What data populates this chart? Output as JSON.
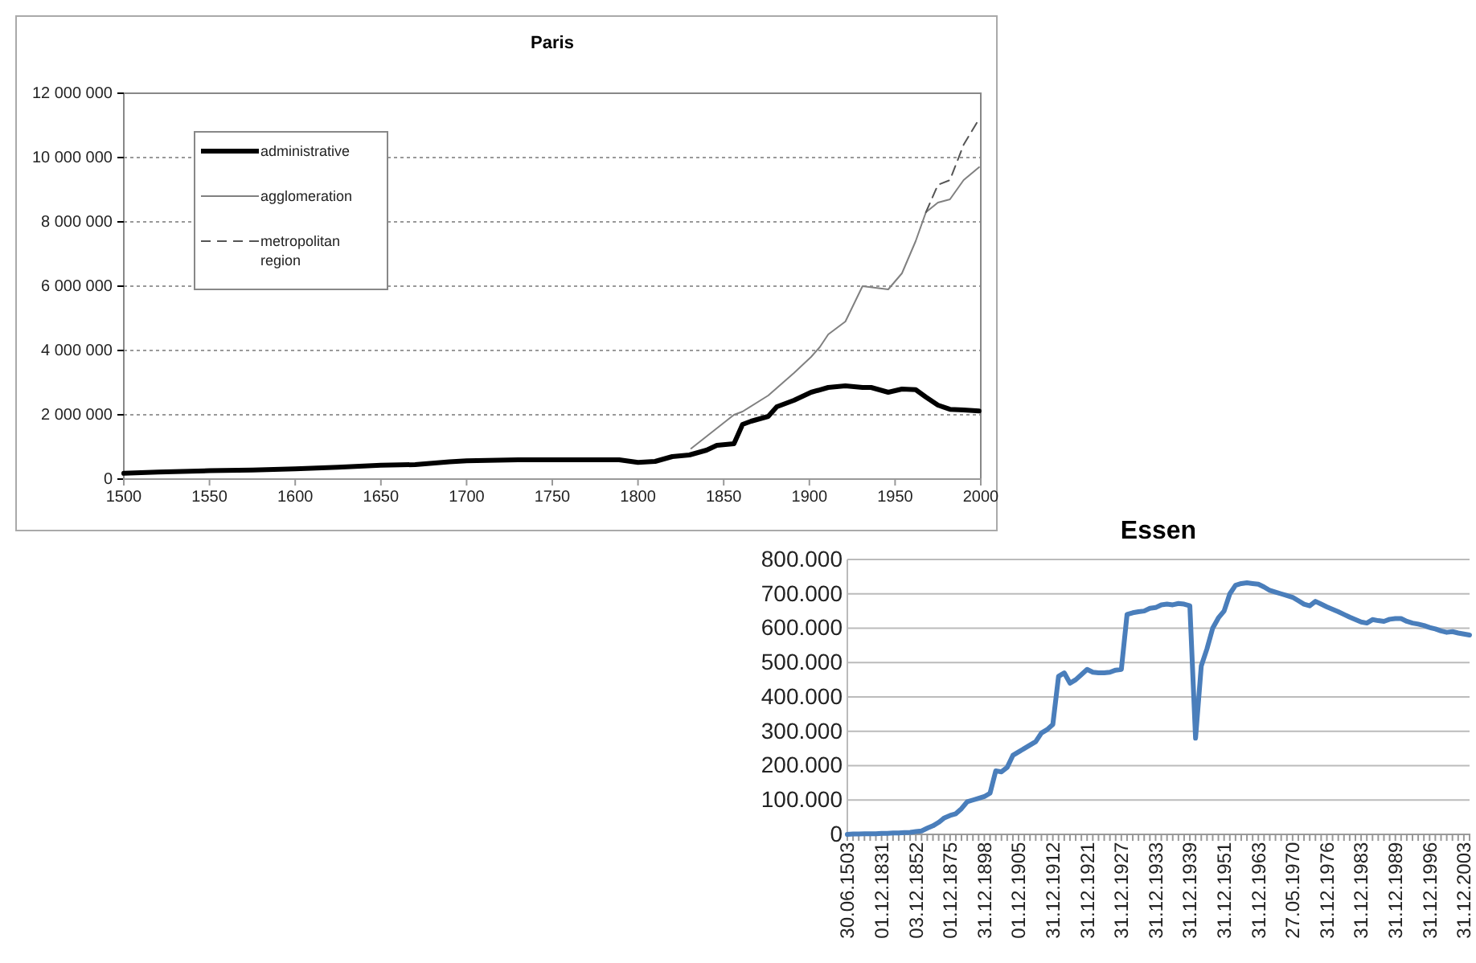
{
  "chart_data": [
    {
      "type": "line",
      "title": "Paris",
      "xlim": [
        1500,
        2000
      ],
      "xticks": [
        1500,
        1550,
        1600,
        1650,
        1700,
        1750,
        1800,
        1850,
        1900,
        1950,
        2000
      ],
      "ylim": [
        0,
        12000000
      ],
      "yticks": [
        0,
        {
          "value": 2000000,
          "label": "2 000 000"
        },
        {
          "value": 4000000,
          "label": "4 000 000"
        },
        {
          "value": 6000000,
          "label": "6 000 000"
        },
        {
          "value": 8000000,
          "label": "8 000 000"
        },
        {
          "value": 10000000,
          "label": "10 000 000"
        },
        {
          "value": 12000000,
          "label": "12 000 000"
        }
      ],
      "grid": "y",
      "legend": "top left",
      "series": [
        {
          "name": "administrative",
          "color": "#000000",
          "line_style": "solid",
          "x": [
            1500,
            1520,
            1550,
            1575,
            1600,
            1625,
            1650,
            1670,
            1690,
            1700,
            1730,
            1750,
            1789,
            1800,
            1810,
            1820,
            1830,
            1840,
            1846,
            1856,
            1861,
            1866,
            1876,
            1881,
            1891,
            1901,
            1911,
            1921,
            1931,
            1936,
            1946,
            1954,
            1962,
            1968,
            1975,
            1982,
            1990,
            1999
          ],
          "values": [
            180000,
            220000,
            260000,
            280000,
            320000,
            370000,
            430000,
            450000,
            540000,
            570000,
            600000,
            600000,
            600000,
            520000,
            550000,
            700000,
            750000,
            900000,
            1050000,
            1100000,
            1700000,
            1800000,
            1950000,
            2250000,
            2450000,
            2700000,
            2850000,
            2900000,
            2850000,
            2850000,
            2700000,
            2800000,
            2780000,
            2550000,
            2300000,
            2170000,
            2150000,
            2120000
          ]
        },
        {
          "name": "agglomeration",
          "color": "#808080",
          "line_style": "solid",
          "x": [
            1831,
            1856,
            1861,
            1876,
            1891,
            1901,
            1906,
            1911,
            1921,
            1931,
            1946,
            1954,
            1962,
            1968,
            1975,
            1982,
            1990,
            1999
          ],
          "values": [
            950000,
            2000000,
            2100000,
            2600000,
            3300000,
            3800000,
            4100000,
            4500000,
            4900000,
            6000000,
            5900000,
            6400000,
            7400000,
            8300000,
            8600000,
            8700000,
            9300000,
            9700000
          ]
        },
        {
          "name": "metropolitan region",
          "color": "#555555",
          "line_style": "dashed",
          "x": [
            1968,
            1975,
            1982,
            1990,
            1999
          ],
          "values": [
            8300000,
            9150000,
            9300000,
            10400000,
            11200000
          ]
        }
      ]
    },
    {
      "type": "line",
      "title": "Essen",
      "categories": [
        "30.06.1503",
        null,
        null,
        null,
        null,
        null,
        "01.12.1831",
        null,
        null,
        null,
        null,
        null,
        "03.12.1852",
        null,
        null,
        null,
        null,
        null,
        "01.12.1875",
        null,
        null,
        null,
        null,
        null,
        "31.12.1898",
        null,
        null,
        null,
        null,
        null,
        "01.12.1905",
        null,
        null,
        null,
        null,
        null,
        "31.12.1912",
        null,
        null,
        null,
        null,
        null,
        "31.12.1921",
        null,
        null,
        null,
        null,
        null,
        "31.12.1927",
        null,
        null,
        null,
        null,
        null,
        "31.12.1933",
        null,
        null,
        null,
        null,
        null,
        "31.12.1939",
        null,
        null,
        null,
        null,
        null,
        "31.12.1951",
        null,
        null,
        null,
        null,
        null,
        "31.12.1963",
        null,
        null,
        null,
        null,
        null,
        "27.05.1970",
        null,
        null,
        null,
        null,
        null,
        "31.12.1976",
        null,
        null,
        null,
        null,
        null,
        "31.12.1983",
        null,
        null,
        null,
        null,
        null,
        "31.12.1989",
        null,
        null,
        null,
        null,
        null,
        "31.12.1996",
        null,
        null,
        null,
        null,
        null,
        "31.12.2003",
        null
      ],
      "ylim": [
        0,
        800000
      ],
      "yticks": [
        0,
        {
          "value": 100000,
          "label": "100.000"
        },
        {
          "value": 200000,
          "label": "200.000"
        },
        {
          "value": 300000,
          "label": "300.000"
        },
        {
          "value": 400000,
          "label": "400.000"
        },
        {
          "value": 500000,
          "label": "500.000"
        },
        {
          "value": 600000,
          "label": "600.000"
        },
        {
          "value": 700000,
          "label": "700.000"
        },
        {
          "value": 800000,
          "label": "800.000"
        }
      ],
      "grid": "y",
      "legend": false,
      "series": [
        {
          "color": "#4a7ebb",
          "line_style": "solid",
          "values": [
            0,
            1000,
            1000,
            2000,
            2000,
            2000,
            3000,
            3000,
            4000,
            4000,
            5000,
            6000,
            8000,
            10000,
            18000,
            25000,
            35000,
            48000,
            55000,
            60000,
            75000,
            95000,
            100000,
            105000,
            110000,
            120000,
            185000,
            182000,
            195000,
            230000,
            240000,
            250000,
            260000,
            270000,
            295000,
            305000,
            320000,
            460000,
            470000,
            440000,
            450000,
            465000,
            480000,
            472000,
            470000,
            470000,
            472000,
            478000,
            480000,
            640000,
            645000,
            648000,
            650000,
            658000,
            660000,
            668000,
            670000,
            668000,
            672000,
            670000,
            665000,
            280000,
            490000,
            540000,
            600000,
            630000,
            650000,
            700000,
            725000,
            730000,
            732000,
            730000,
            728000,
            720000,
            710000,
            705000,
            700000,
            695000,
            690000,
            680000,
            670000,
            665000,
            678000,
            670000,
            662000,
            655000,
            648000,
            640000,
            632000,
            625000,
            618000,
            615000,
            625000,
            622000,
            620000,
            626000,
            628000,
            628000,
            620000,
            615000,
            612000,
            608000,
            602000,
            598000,
            592000,
            588000,
            590000,
            586000,
            583000,
            580000
          ]
        }
      ]
    }
  ]
}
